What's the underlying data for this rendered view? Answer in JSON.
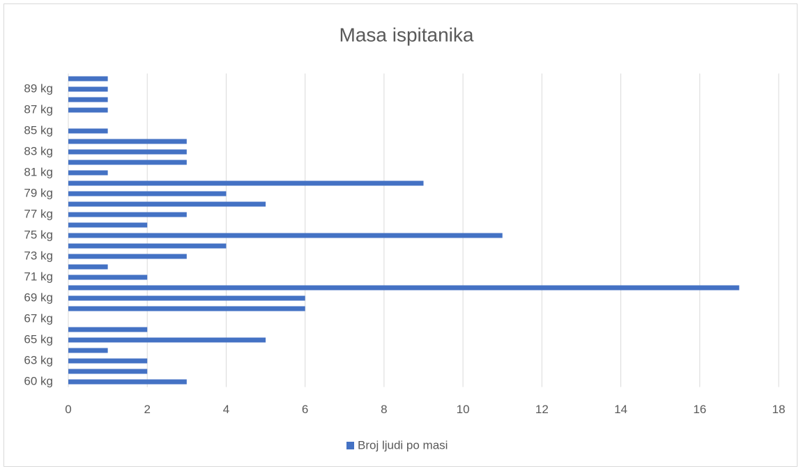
{
  "chart_data": {
    "type": "barh",
    "title": "Masa ispitanika",
    "categories": [
      "60 kg",
      null,
      "63 kg",
      null,
      "65 kg",
      null,
      "67 kg",
      null,
      "69 kg",
      null,
      "71 kg",
      null,
      "73 kg",
      null,
      "75 kg",
      null,
      "77 kg",
      null,
      "79 kg",
      null,
      "81 kg",
      null,
      "83 kg",
      null,
      "85 kg",
      null,
      "87 kg",
      null,
      "89 kg",
      null
    ],
    "series": [
      {
        "name": "Broj ljudi po masi",
        "color": "#4472c4",
        "values": [
          3,
          2,
          2,
          1,
          5,
          2,
          0,
          6,
          6,
          17,
          2,
          1,
          3,
          4,
          11,
          2,
          3,
          5,
          4,
          9,
          1,
          3,
          3,
          3,
          1,
          0,
          1,
          1,
          1,
          1
        ]
      }
    ],
    "xlim": [
      0,
      18
    ],
    "xticks": [
      0,
      2,
      4,
      6,
      8,
      10,
      12,
      14,
      16,
      18
    ],
    "grid": true,
    "legend": "bottom"
  }
}
